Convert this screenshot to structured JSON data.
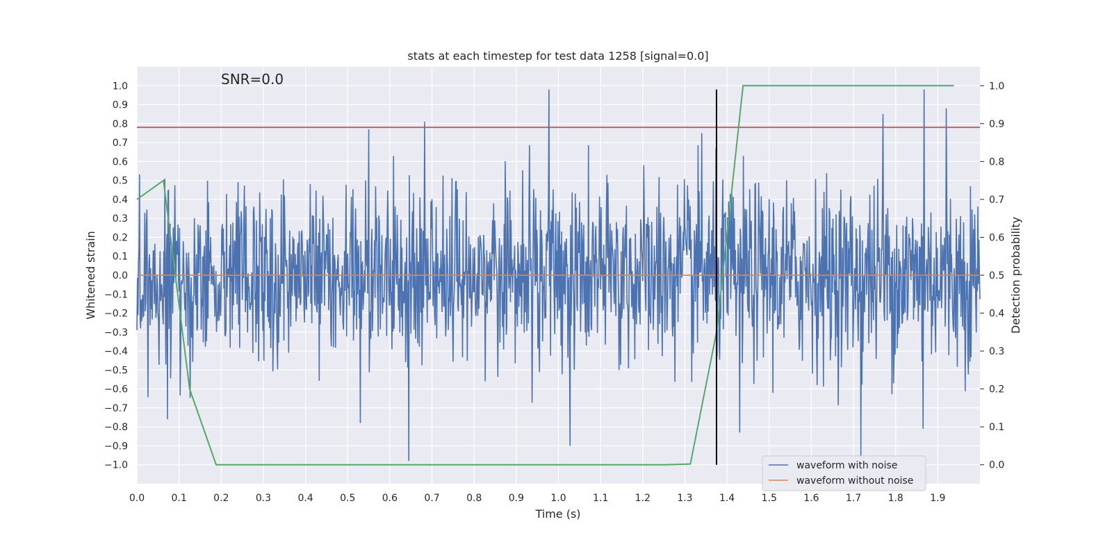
{
  "chart_data": {
    "type": "line",
    "title": "stats at each timestep for test data 1258 [signal=0.0]",
    "xlabel": "Time (s)",
    "ylabel_left": "Whitened strain",
    "ylabel_right": "Detection probability",
    "annotation": "SNR=0.0",
    "xlim": [
      0.0,
      2.0
    ],
    "ylim_left": [
      -1.1,
      1.1
    ],
    "ylim_right": [
      -0.05,
      1.05
    ],
    "x_ticks": [
      "0.0",
      "0.1",
      "0.2",
      "0.3",
      "0.4",
      "0.5",
      "0.6",
      "0.7",
      "0.8",
      "0.9",
      "1.0",
      "1.1",
      "1.2",
      "1.3",
      "1.4",
      "1.5",
      "1.6",
      "1.7",
      "1.8",
      "1.9"
    ],
    "y_left_ticks": [
      "1.0",
      "0.9",
      "0.8",
      "0.7",
      "0.6",
      "0.5",
      "0.4",
      "0.3",
      "0.2",
      "0.1",
      "0.0",
      "−0.1",
      "−0.2",
      "−0.3",
      "−0.4",
      "−0.5",
      "−0.6",
      "−0.7",
      "−0.8",
      "−0.9",
      "−1.0"
    ],
    "y_right_ticks": [
      "1.0",
      "0.9",
      "0.8",
      "0.7",
      "0.6",
      "0.5",
      "0.4",
      "0.3",
      "0.2",
      "0.1",
      "0.0"
    ],
    "grid": true,
    "legend_position": "lower-right",
    "series": [
      {
        "name": "waveform with noise",
        "axis": "left",
        "color": "#4c72b0",
        "style": "noise",
        "x_range": [
          0.0,
          2.0
        ],
        "amplitude_range": [
          -0.98,
          0.98
        ],
        "peaks": [
          {
            "x": 0.978,
            "y": 0.98
          },
          {
            "x": 1.867,
            "y": 0.98
          },
          {
            "x": 1.92,
            "y": 0.88
          },
          {
            "x": 1.77,
            "y": 0.85
          },
          {
            "x": 0.683,
            "y": 0.81
          },
          {
            "x": 0.55,
            "y": 0.77
          },
          {
            "x": 1.34,
            "y": 0.75
          },
          {
            "x": 1.718,
            "y": -0.97
          },
          {
            "x": 0.645,
            "y": -0.98
          },
          {
            "x": 1.027,
            "y": -0.9
          },
          {
            "x": 1.43,
            "y": -0.83
          },
          {
            "x": 0.072,
            "y": -0.76
          },
          {
            "x": 1.865,
            "y": -0.81
          },
          {
            "x": 0.53,
            "y": -0.78
          }
        ]
      },
      {
        "name": "waveform without noise",
        "axis": "left",
        "color": "#dd8452",
        "x": [
          0.0,
          2.0
        ],
        "y": [
          0.0,
          0.0
        ]
      },
      {
        "name": "",
        "axis": "right",
        "color": "#55a868",
        "x": [
          0.0,
          0.063,
          0.125,
          0.188,
          0.25,
          0.5,
          0.75,
          1.0,
          1.25,
          1.313,
          1.375,
          1.438,
          1.5,
          1.75,
          1.875,
          1.938
        ],
        "y": [
          0.7,
          0.75,
          0.2,
          0.0,
          0.0,
          0.0,
          0.0,
          0.0,
          0.0,
          0.002,
          0.35,
          1.0,
          1.0,
          1.0,
          1.0,
          1.0
        ]
      }
    ],
    "threshold_line": {
      "axis": "left",
      "y": 0.78,
      "color": "#c44e52"
    },
    "vertical_marker": {
      "x": 1.375,
      "y_from": -1.0,
      "y_to": 0.98,
      "color": "#000000"
    }
  }
}
